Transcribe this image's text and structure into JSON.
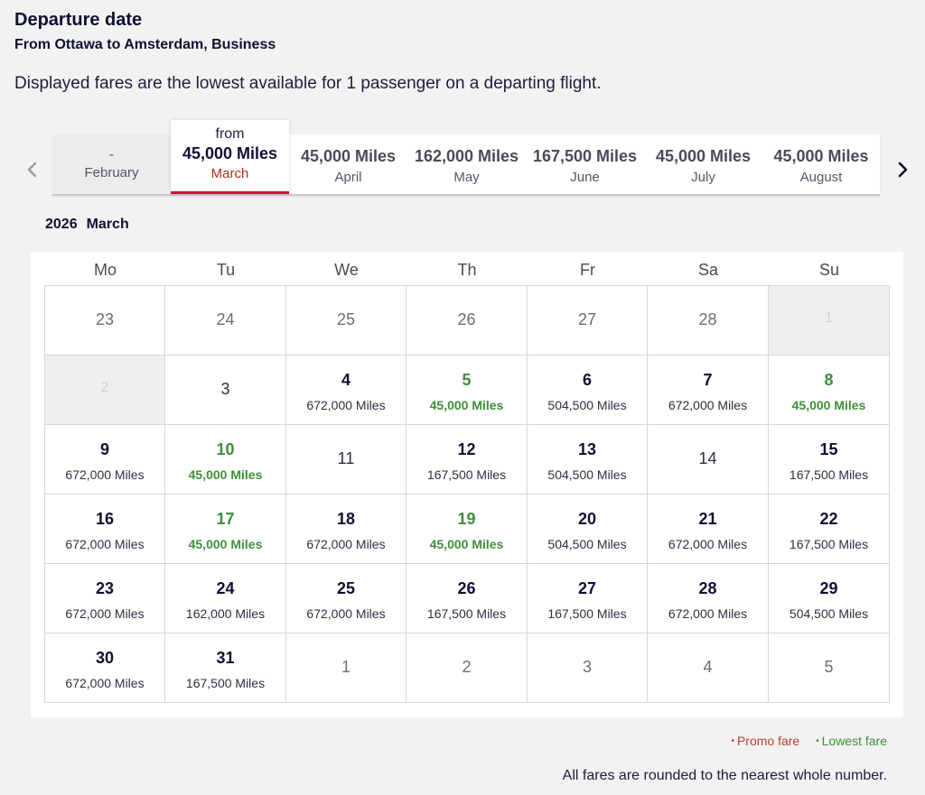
{
  "header": {
    "title": "Departure date",
    "route": "From Ottawa to Amsterdam, Business",
    "note": "Displayed fares are the lowest available for 1 passenger on a departing flight."
  },
  "months": [
    {
      "price": "-",
      "name": "February",
      "state": "disabled"
    },
    {
      "from": "from",
      "price": "45,000 Miles",
      "name": "March",
      "state": "active"
    },
    {
      "price": "45,000 Miles",
      "name": "April"
    },
    {
      "price": "162,000 Miles",
      "name": "May"
    },
    {
      "price": "167,500 Miles",
      "name": "June"
    },
    {
      "price": "45,000 Miles",
      "name": "July"
    },
    {
      "price": "45,000 Miles",
      "name": "August"
    }
  ],
  "nav": {
    "prev_icon": "chevron-left-icon",
    "next_icon": "chevron-right-icon"
  },
  "calendar": {
    "year": "2026",
    "month": "March",
    "weekdays": [
      "Mo",
      "Tu",
      "We",
      "Th",
      "Fr",
      "Sa",
      "Su"
    ],
    "days": [
      {
        "d": "23",
        "t": "outside"
      },
      {
        "d": "24",
        "t": "outside"
      },
      {
        "d": "25",
        "t": "outside"
      },
      {
        "d": "26",
        "t": "outside"
      },
      {
        "d": "27",
        "t": "outside"
      },
      {
        "d": "28",
        "t": "outside"
      },
      {
        "d": "1",
        "t": "disabled"
      },
      {
        "d": "2",
        "t": "disabled"
      },
      {
        "d": "3",
        "t": "plain"
      },
      {
        "d": "4",
        "fare": "672,000 Miles"
      },
      {
        "d": "5",
        "fare": "45,000 Miles",
        "lowest": true
      },
      {
        "d": "6",
        "fare": "504,500 Miles"
      },
      {
        "d": "7",
        "fare": "672,000 Miles"
      },
      {
        "d": "8",
        "fare": "45,000 Miles",
        "lowest": true
      },
      {
        "d": "9",
        "fare": "672,000 Miles"
      },
      {
        "d": "10",
        "fare": "45,000 Miles",
        "lowest": true
      },
      {
        "d": "11",
        "t": "plain"
      },
      {
        "d": "12",
        "fare": "167,500 Miles"
      },
      {
        "d": "13",
        "fare": "504,500 Miles"
      },
      {
        "d": "14",
        "t": "plain"
      },
      {
        "d": "15",
        "fare": "167,500 Miles"
      },
      {
        "d": "16",
        "fare": "672,000 Miles"
      },
      {
        "d": "17",
        "fare": "45,000 Miles",
        "lowest": true
      },
      {
        "d": "18",
        "fare": "672,000 Miles"
      },
      {
        "d": "19",
        "fare": "45,000 Miles",
        "lowest": true
      },
      {
        "d": "20",
        "fare": "504,500 Miles"
      },
      {
        "d": "21",
        "fare": "672,000 Miles"
      },
      {
        "d": "22",
        "fare": "167,500 Miles"
      },
      {
        "d": "23",
        "fare": "672,000 Miles"
      },
      {
        "d": "24",
        "fare": "162,000 Miles"
      },
      {
        "d": "25",
        "fare": "672,000 Miles"
      },
      {
        "d": "26",
        "fare": "167,500 Miles"
      },
      {
        "d": "27",
        "fare": "167,500 Miles"
      },
      {
        "d": "28",
        "fare": "672,000 Miles"
      },
      {
        "d": "29",
        "fare": "504,500 Miles"
      },
      {
        "d": "30",
        "fare": "672,000 Miles"
      },
      {
        "d": "31",
        "fare": "167,500 Miles"
      },
      {
        "d": "1",
        "t": "outside"
      },
      {
        "d": "2",
        "t": "outside"
      },
      {
        "d": "3",
        "t": "outside"
      },
      {
        "d": "4",
        "t": "outside"
      },
      {
        "d": "5",
        "t": "outside"
      }
    ]
  },
  "legend": {
    "dot": "•",
    "promo": "Promo fare",
    "lowest": "Lowest fare"
  },
  "footer": {
    "rounding": "All fares are rounded to the nearest whole number."
  },
  "colors": {
    "promo": "#b5402a",
    "lowest": "#3f8f3a",
    "active_underline": "#c8102e"
  }
}
